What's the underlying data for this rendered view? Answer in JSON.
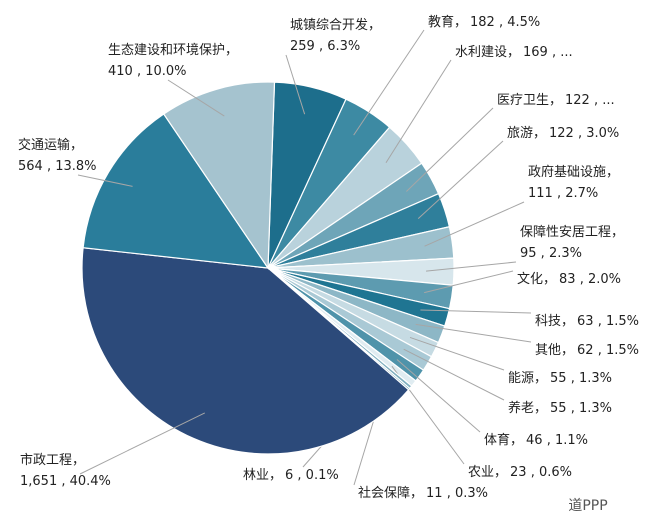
{
  "chart_data": {
    "type": "pie",
    "categories": [
      "城镇综合开发，",
      "教育，",
      "水利建设，",
      "医疗卫生，",
      "旅游，",
      "政府基础设施，",
      "保障性安居工程，",
      "文化，",
      "科技，",
      "其他，",
      "能源，",
      "养老，",
      "体育，",
      "农业，",
      "社会保障，",
      "林业，",
      "市政工程，",
      "交通运输，",
      "生态建设和环境保护，"
    ],
    "values": [
      259,
      182,
      169,
      122,
      122,
      111,
      95,
      83,
      63,
      62,
      55,
      55,
      46,
      23,
      11,
      6,
      1651,
      564,
      410
    ],
    "value_labels": [
      "259 , 6.3%",
      "182 , 4.5%",
      "169 , ...",
      "122 , ...",
      "122 , 3.0%",
      "111 , 2.7%",
      "95 , 2.3%",
      "83 , 2.0%",
      "63 , 1.5%",
      "62 , 1.5%",
      "55 , 1.3%",
      "55 , 1.3%",
      "46 , 1.1%",
      "23 , 0.6%",
      "11 , 0.3%",
      "6 , 0.1%",
      "1,651 , 40.4%",
      "564 , 13.8%",
      "410 , 10.0%"
    ],
    "colors": [
      "#1d6e8c",
      "#3d8aa3",
      "#b9d2dc",
      "#6ea5b8",
      "#2f7f9b",
      "#9cc0cd",
      "#d7e6ec",
      "#5d9bb0",
      "#1f7592",
      "#8db7c6",
      "#c6dbe3",
      "#a9c9d5",
      "#4f93aa",
      "#e0ecf1",
      "#7fafbf",
      "#3a86a0",
      "#2c4a7a",
      "#2a7d9b",
      "#a5c3cf"
    ],
    "watermark": "道PPP"
  }
}
